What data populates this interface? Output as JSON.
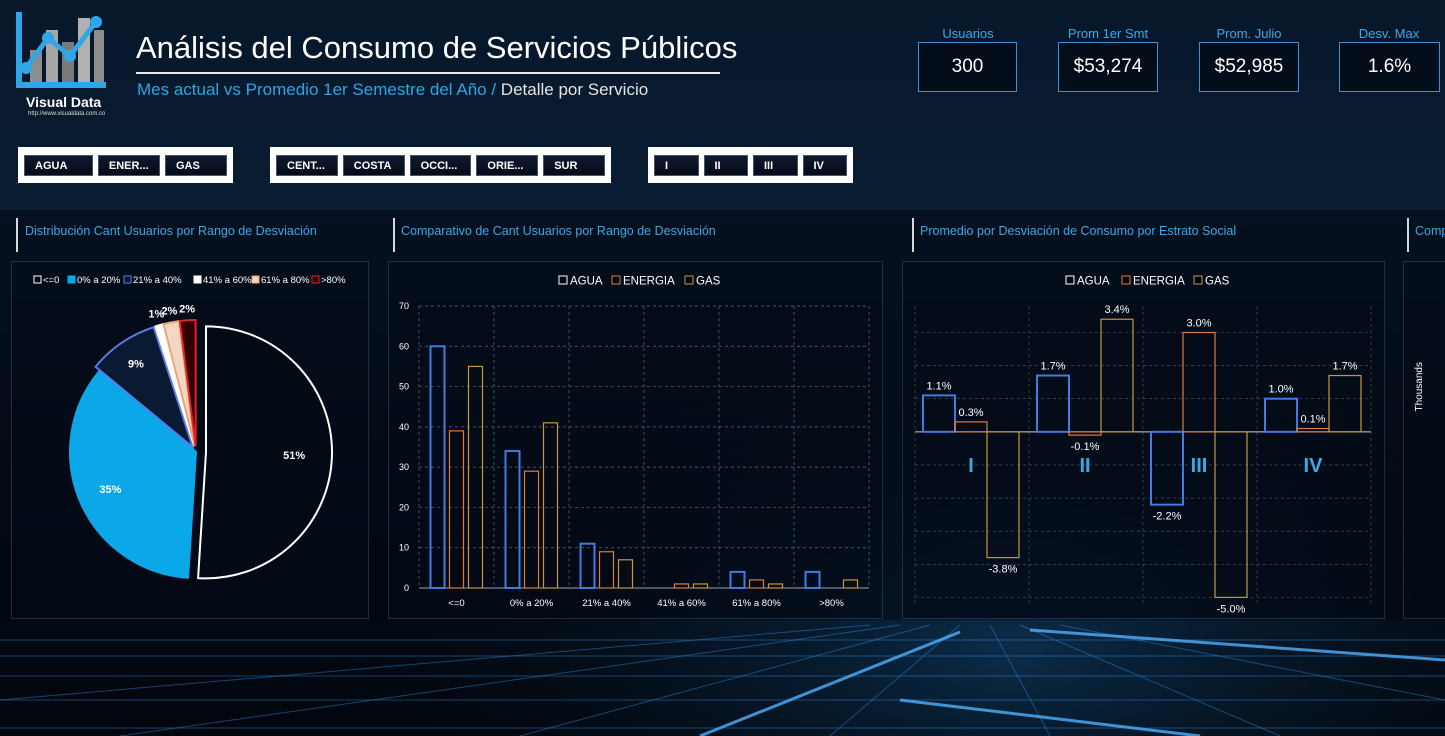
{
  "header": {
    "logo_text": "Visual Data",
    "logo_url": "http://www.visualdata.com.co",
    "title": "Análisis del Consumo de Servicios Públicos",
    "subtitle_main": "Mes actual vs Promedio 1er Semestre del Año",
    "subtitle_sep": " / ",
    "subtitle_detail": "Detalle por Servicio"
  },
  "kpis": [
    {
      "label": "Usuarios",
      "value": "300"
    },
    {
      "label": "Prom 1er Smt",
      "value": "$53,274"
    },
    {
      "label": "Prom. Julio",
      "value": "$52,985"
    },
    {
      "label": "Desv. Max",
      "value": "1.6%"
    }
  ],
  "slicers": {
    "servicio": [
      "AGUA",
      "ENER...",
      "GAS"
    ],
    "region": [
      "CENT...",
      "COSTA",
      "OCCI...",
      "ORIE...",
      "SUR"
    ],
    "estrato": [
      "I",
      "II",
      "III",
      "IV"
    ]
  },
  "panels": {
    "p1_title": "Distribución Cant Usuarios por Rango de Desviación",
    "p2_title": "Comparativo de Cant Usuarios por Rango de Desviación",
    "p3_title": "Promedio por Desviación de Consumo por Estrato Social",
    "p4_title": "Comp",
    "p4_ylabel": "Thousands"
  },
  "colors": {
    "agua": "#3f7be0",
    "energia": "#e07a3a",
    "gas": "#c9963c",
    "pie_cyan": "#0aa8e8",
    "accent": "#39a9ea"
  },
  "chart_data": [
    {
      "type": "pie",
      "title": "Distribución Cant Usuarios por Rango de Desviación",
      "categories": [
        "<=0",
        "0% a 20%",
        "21% a 40%",
        "41% a 60%",
        "61% a 80%",
        ">80%"
      ],
      "values": [
        51,
        35,
        9,
        1,
        2,
        2
      ],
      "labels": [
        "51%",
        "35%",
        "9%",
        "1%",
        "2%",
        "2%"
      ],
      "legend": "top"
    },
    {
      "type": "bar",
      "title": "Comparativo de Cant Usuarios por Rango de Desviación",
      "categories": [
        "<=0",
        "0% a 20%",
        "21% a 40%",
        "41% a 60%",
        "61% a 80%",
        ">80%"
      ],
      "series": [
        {
          "name": "AGUA",
          "values": [
            60,
            34,
            11,
            0,
            4,
            4
          ]
        },
        {
          "name": "ENERGIA",
          "values": [
            39,
            29,
            9,
            1,
            2,
            0
          ]
        },
        {
          "name": "GAS",
          "values": [
            55,
            41,
            7,
            1,
            1,
            2
          ]
        }
      ],
      "ylim": [
        0,
        70
      ],
      "yticks": [
        0,
        10,
        20,
        30,
        40,
        50,
        60,
        70
      ],
      "grid": true,
      "legend": "top"
    },
    {
      "type": "bar",
      "title": "Promedio por Desviación de Consumo por Estrato Social",
      "categories": [
        "I",
        "II",
        "III",
        "IV"
      ],
      "series": [
        {
          "name": "AGUA",
          "values": [
            1.1,
            1.7,
            -2.2,
            1.0
          ],
          "labels": [
            "1.1%",
            "1.7%",
            "-2.2%",
            "1.0%"
          ]
        },
        {
          "name": "ENERGIA",
          "values": [
            0.3,
            -0.1,
            3.0,
            0.1
          ],
          "labels": [
            "0.3%",
            "-0.1%",
            "3.0%",
            "0.1%"
          ]
        },
        {
          "name": "GAS",
          "values": [
            -3.8,
            3.4,
            -5.0,
            1.7
          ],
          "labels": [
            "-3.8%",
            "3.4%",
            "-5.0%",
            "1.7%"
          ]
        }
      ],
      "ylim": [
        -5.2,
        3.8
      ],
      "grid": true,
      "legend": "top"
    }
  ]
}
